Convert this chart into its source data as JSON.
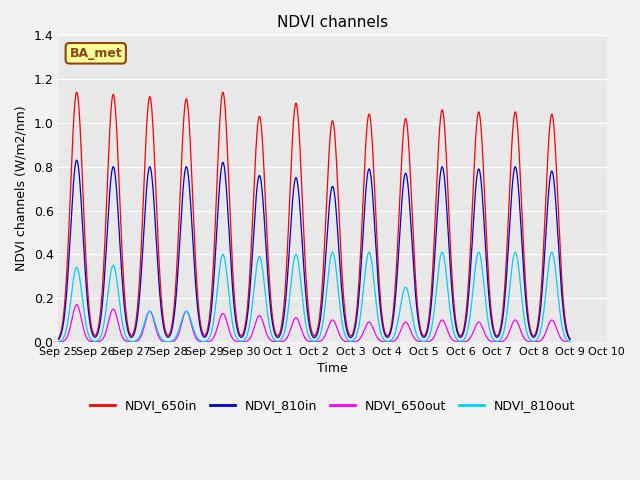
{
  "title": "NDVI channels",
  "ylabel": "NDVI channels (W/m2/nm)",
  "xlabel": "Time",
  "annotation_text": "BA_met",
  "annotation_color": "#8B4513",
  "annotation_bg": "#FFFF99",
  "ylim": [
    0,
    1.4
  ],
  "yticks": [
    0.0,
    0.2,
    0.4,
    0.6,
    0.8,
    1.0,
    1.2,
    1.4
  ],
  "legend_labels": [
    "NDVI_650in",
    "NDVI_810in",
    "NDVI_650out",
    "NDVI_810out"
  ],
  "legend_colors": [
    "#FF0000",
    "#0000CC",
    "#FF00FF",
    "#00CCFF"
  ],
  "line_colors": {
    "650in": "#FF0000",
    "810in": "#0000CC",
    "650out": "#FF00FF",
    "810out": "#00CCFF"
  },
  "background_color": "#E8E8E8",
  "grid_color": "#FFFFFF",
  "xtick_labels": [
    "Sep 25",
    "Sep 26",
    "Sep 27",
    "Sep 28",
    "Sep 29",
    "Sep 30",
    "Oct 1",
    "Oct 2",
    "Oct 3",
    "Oct 4",
    "Oct 5",
    "Oct 6",
    "Oct 7",
    "Oct 8",
    "Oct 9",
    "Oct 10"
  ],
  "peak_650in": [
    1.14,
    1.13,
    1.12,
    1.11,
    1.14,
    1.03,
    1.09,
    1.01,
    1.04,
    1.02,
    1.06,
    1.05,
    1.05,
    1.04
  ],
  "peak_810in": [
    0.83,
    0.8,
    0.8,
    0.8,
    0.82,
    0.76,
    0.75,
    0.71,
    0.79,
    0.77,
    0.8,
    0.79,
    0.8,
    0.78
  ],
  "peak_650out": [
    0.17,
    0.15,
    0.14,
    0.14,
    0.13,
    0.12,
    0.11,
    0.1,
    0.09,
    0.09,
    0.1,
    0.09,
    0.1,
    0.1
  ],
  "peak_810out": [
    0.34,
    0.35,
    0.14,
    0.14,
    0.4,
    0.39,
    0.4,
    0.41,
    0.41,
    0.25,
    0.41,
    0.41,
    0.41,
    0.41
  ]
}
